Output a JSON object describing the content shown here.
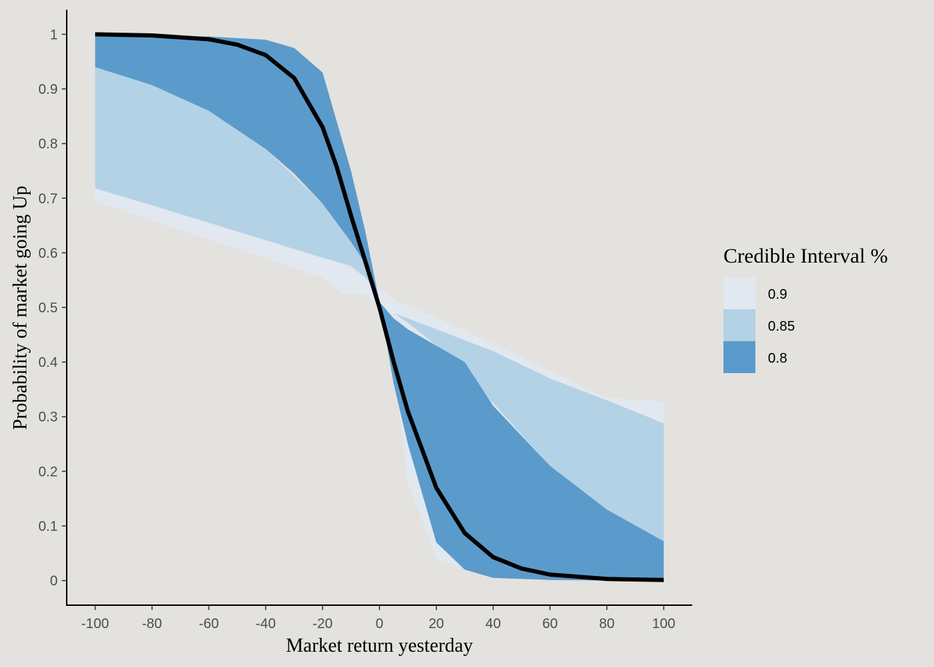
{
  "chart_data": {
    "type": "area",
    "xlabel": "Market return yesterday",
    "ylabel": "Probability of market going Up",
    "xlim": [
      -110,
      110
    ],
    "ylim": [
      -0.045,
      1.045
    ],
    "x_ticks": [
      -100,
      -80,
      -60,
      -40,
      -20,
      0,
      20,
      40,
      60,
      80,
      100
    ],
    "y_ticks": [
      0,
      0.1,
      0.2,
      0.3,
      0.4,
      0.5,
      0.6,
      0.7,
      0.8,
      0.9,
      1
    ],
    "grid": false,
    "legend": {
      "title": "Credible Interval %",
      "placement": "right",
      "entries": [
        {
          "label": "0.9",
          "color": "#e1e8ef"
        },
        {
          "label": "0.85",
          "color": "#b3d2e6"
        },
        {
          "label": "0.8",
          "color": "#5b9bcb"
        }
      ]
    },
    "bands": [
      {
        "name": "0.9",
        "color": "#e1e8ef",
        "x": [
          -100,
          -80,
          -60,
          -40,
          -20,
          -13,
          -5,
          0,
          5,
          10,
          20,
          40,
          60,
          80,
          100
        ],
        "upper": [
          0.718,
          0.687,
          0.655,
          0.623,
          0.592,
          0.581,
          0.555,
          0.535,
          0.515,
          0.503,
          0.482,
          0.434,
          0.384,
          0.334,
          0.328
        ],
        "lower": [
          0.694,
          0.659,
          0.624,
          0.59,
          0.554,
          0.525,
          0.524,
          0.5,
          0.4,
          0.18,
          0.04,
          0.005,
          0.001,
          0.0,
          0.0
        ]
      },
      {
        "name": "0.85",
        "color": "#b3d2e6",
        "x": [
          -100,
          -80,
          -60,
          -40,
          -20,
          -10,
          -5,
          0,
          5,
          10,
          20,
          40,
          60,
          80,
          100
        ],
        "upper": [
          0.94,
          0.907,
          0.86,
          0.79,
          0.69,
          0.62,
          0.58,
          0.52,
          0.49,
          0.48,
          0.46,
          0.42,
          0.37,
          0.33,
          0.288
        ],
        "lower": [
          0.718,
          0.687,
          0.655,
          0.623,
          0.591,
          0.576,
          0.555,
          0.52,
          0.49,
          0.472,
          0.43,
          0.325,
          0.21,
          0.13,
          0.072
        ]
      },
      {
        "name": "0.8",
        "color": "#5b9bcb",
        "x": [
          -100,
          -80,
          -60,
          -40,
          -30,
          -20,
          -10,
          -5,
          0,
          5,
          10,
          20,
          30,
          40,
          60,
          80,
          100
        ],
        "upper": [
          0.997,
          0.997,
          0.996,
          0.99,
          0.975,
          0.93,
          0.75,
          0.64,
          0.51,
          0.48,
          0.46,
          0.43,
          0.4,
          0.32,
          0.21,
          0.13,
          0.072
        ],
        "lower": [
          0.94,
          0.907,
          0.86,
          0.79,
          0.745,
          0.69,
          0.62,
          0.58,
          0.51,
          0.36,
          0.25,
          0.07,
          0.02,
          0.005,
          0.001,
          0.0,
          0.0
        ]
      }
    ],
    "median_line": {
      "color": "#000000",
      "x": [
        -100,
        -80,
        -60,
        -50,
        -40,
        -30,
        -20,
        -15,
        -10,
        -5,
        0,
        5,
        10,
        15,
        20,
        30,
        40,
        50,
        60,
        80,
        100
      ],
      "y": [
        1.0,
        0.998,
        0.991,
        0.981,
        0.962,
        0.92,
        0.83,
        0.757,
        0.668,
        0.585,
        0.5,
        0.4,
        0.31,
        0.24,
        0.17,
        0.087,
        0.043,
        0.022,
        0.011,
        0.003,
        0.001
      ]
    }
  }
}
